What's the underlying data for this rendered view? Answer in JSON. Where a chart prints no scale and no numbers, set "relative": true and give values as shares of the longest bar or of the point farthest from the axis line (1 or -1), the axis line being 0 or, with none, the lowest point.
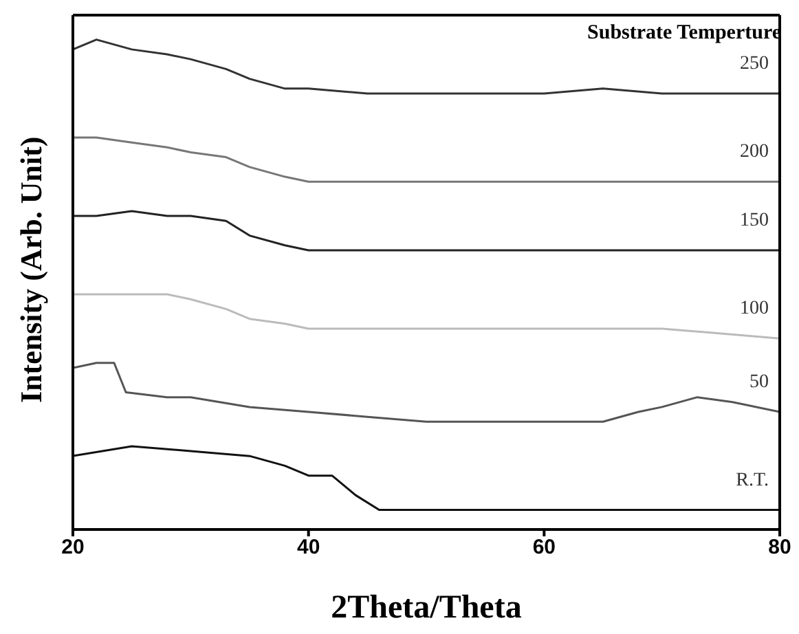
{
  "chart_data": {
    "type": "line",
    "relative": true,
    "xlabel": "2Theta/Theta",
    "ylabel": "Intensity (Arb. Unit)",
    "legend_title": "Substrate Temperture",
    "xlim": [
      20,
      80
    ],
    "xticks": [
      20,
      40,
      60,
      80
    ],
    "marker": "none",
    "series": [
      {
        "name": "250",
        "color": "#333333",
        "x": [
          20,
          22,
          25,
          28,
          30,
          33,
          35,
          38,
          40,
          45,
          50,
          55,
          60,
          65,
          70,
          75,
          80
        ],
        "values": [
          0.98,
          1.0,
          0.98,
          0.97,
          0.96,
          0.94,
          0.92,
          0.9,
          0.9,
          0.89,
          0.89,
          0.89,
          0.89,
          0.9,
          0.89,
          0.89,
          0.89
        ]
      },
      {
        "name": "200",
        "color": "#777777",
        "x": [
          20,
          22,
          25,
          28,
          30,
          33,
          35,
          38,
          40,
          45,
          50,
          55,
          60,
          65,
          70,
          75,
          80
        ],
        "values": [
          0.8,
          0.8,
          0.79,
          0.78,
          0.77,
          0.76,
          0.74,
          0.72,
          0.71,
          0.71,
          0.71,
          0.71,
          0.71,
          0.71,
          0.71,
          0.71,
          0.71
        ]
      },
      {
        "name": "150",
        "color": "#222222",
        "x": [
          20,
          22,
          25,
          28,
          30,
          33,
          35,
          38,
          40,
          45,
          50,
          55,
          60,
          65,
          70,
          75,
          80
        ],
        "values": [
          0.64,
          0.64,
          0.65,
          0.64,
          0.64,
          0.63,
          0.6,
          0.58,
          0.57,
          0.57,
          0.57,
          0.57,
          0.57,
          0.57,
          0.57,
          0.57,
          0.57
        ]
      },
      {
        "name": "100",
        "color": "#bbbbbb",
        "x": [
          20,
          22,
          25,
          28,
          30,
          33,
          35,
          38,
          40,
          45,
          50,
          55,
          60,
          65,
          70,
          75,
          80
        ],
        "values": [
          0.48,
          0.48,
          0.48,
          0.48,
          0.47,
          0.45,
          0.43,
          0.42,
          0.41,
          0.41,
          0.41,
          0.41,
          0.41,
          0.41,
          0.41,
          0.4,
          0.39
        ]
      },
      {
        "name": "50",
        "color": "#555555",
        "x": [
          20,
          22,
          23.5,
          24.5,
          28,
          30,
          35,
          40,
          45,
          50,
          55,
          60,
          65,
          68,
          70,
          73,
          76,
          80
        ],
        "values": [
          0.33,
          0.34,
          0.34,
          0.28,
          0.27,
          0.27,
          0.25,
          0.24,
          0.23,
          0.22,
          0.22,
          0.22,
          0.22,
          0.24,
          0.25,
          0.27,
          0.26,
          0.24
        ]
      },
      {
        "name": "R.T.",
        "color": "#111111",
        "x": [
          20,
          25,
          30,
          35,
          38,
          40,
          42,
          43,
          44,
          46,
          50,
          60,
          70,
          80
        ],
        "values": [
          0.15,
          0.17,
          0.16,
          0.15,
          0.13,
          0.11,
          0.11,
          0.09,
          0.07,
          0.04,
          0.04,
          0.04,
          0.04,
          0.04
        ]
      }
    ]
  }
}
